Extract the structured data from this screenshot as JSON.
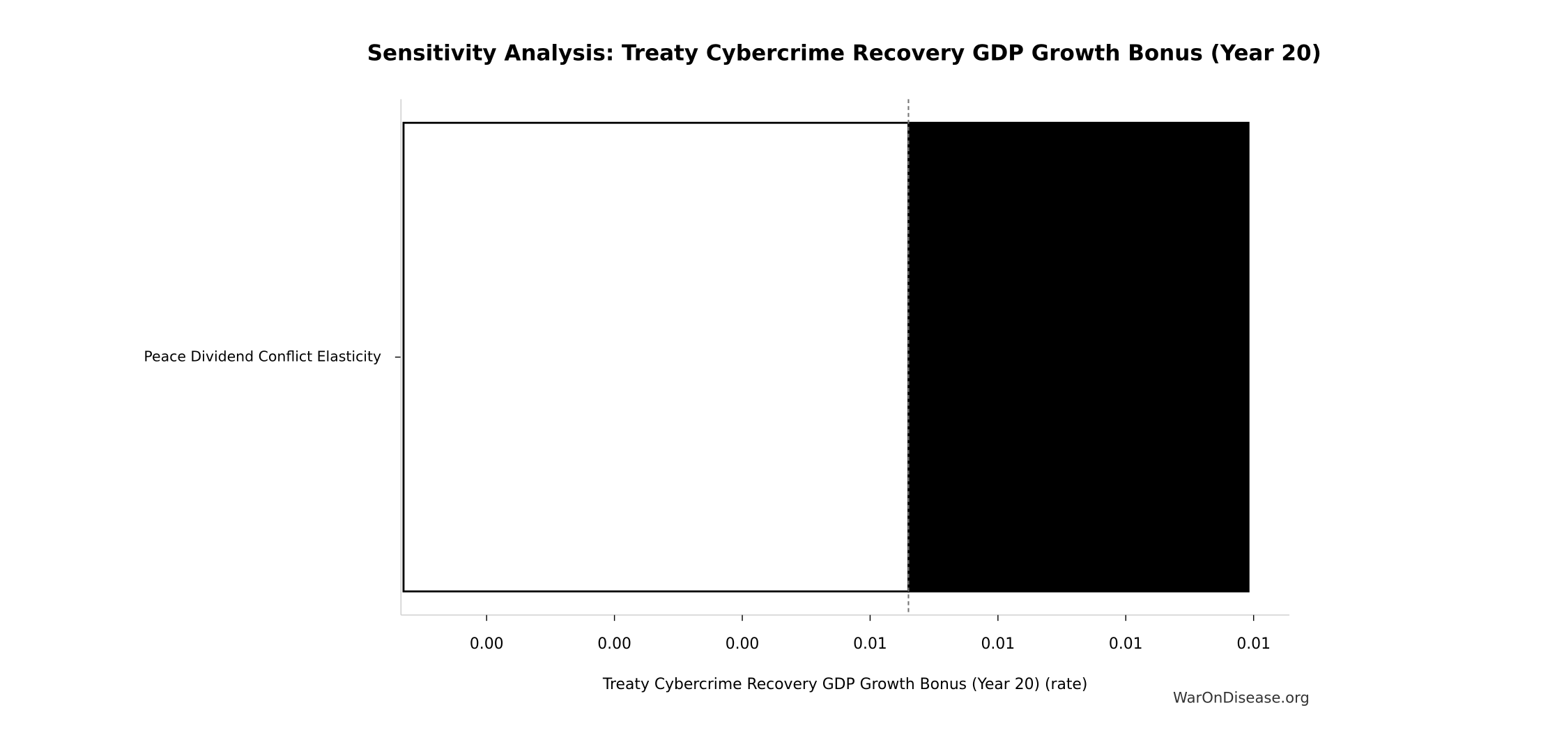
{
  "chart_data": {
    "type": "tornado",
    "title": "Sensitivity Analysis: Treaty Cybercrime Recovery GDP Growth Bonus (Year 20)",
    "xlabel": "Treaty Cybercrime Recovery GDP Growth Bonus (Year 20) (rate)",
    "watermark": "WarOnDisease.org",
    "categories": [
      "Peace Dividend Conflict Elasticity"
    ],
    "low": [
      0.00135
    ],
    "high": [
      0.00796
    ],
    "baseline": 0.0053,
    "low_color": "#ffffff",
    "high_color": "#000000",
    "xlim": [
      0.00133,
      0.00828
    ],
    "xticks": [
      {
        "value": 0.002,
        "label": "0.00"
      },
      {
        "value": 0.003,
        "label": "0.00"
      },
      {
        "value": 0.004,
        "label": "0.00"
      },
      {
        "value": 0.005,
        "label": "0.01"
      },
      {
        "value": 0.006,
        "label": "0.01"
      },
      {
        "value": 0.007,
        "label": "0.01"
      },
      {
        "value": 0.008,
        "label": "0.01"
      }
    ]
  }
}
